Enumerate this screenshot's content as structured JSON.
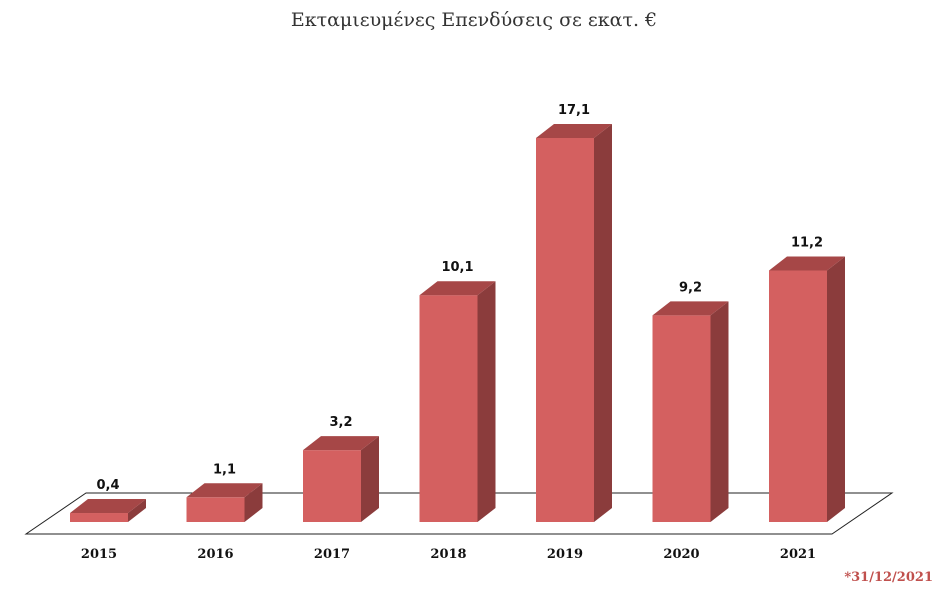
{
  "chart_data": {
    "type": "bar",
    "title": "Εκταμιευμένες Επενδύσεις σε εκατ. €",
    "xlabel": "",
    "ylabel": "",
    "categories": [
      "2015",
      "2016",
      "2017",
      "2018",
      "2019",
      "2020",
      "2021"
    ],
    "values": [
      0.4,
      1.1,
      3.2,
      10.1,
      17.1,
      9.2,
      11.2
    ],
    "value_labels": [
      "0,4",
      "1,1",
      "3,2",
      "10,1",
      "17,1",
      "9,2",
      "11,2"
    ],
    "ylim": [
      0,
      18
    ],
    "grid": false,
    "legend": "none",
    "footnote": "*31/12/2021",
    "colors": {
      "front": "#d46060",
      "side": "#8b3c3c",
      "top": "#a64747",
      "footnote": "#c0504d"
    }
  }
}
